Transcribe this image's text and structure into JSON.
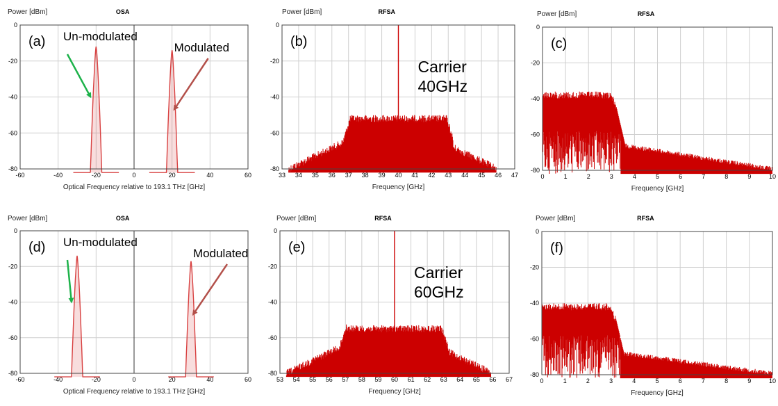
{
  "colors": {
    "trace": "#cc0000",
    "optical_trace": "#d84040",
    "grid": "#cfcfcf",
    "arrow_green": "#1db24a",
    "arrow_red": "#b3504a"
  },
  "chart_data": [
    {
      "id": "a",
      "type": "area",
      "title": "OSA",
      "label": "(a)",
      "ylabel": "Power [dBm]",
      "xlabel": "Optical Frequency relative to 193.1 THz [GHz]",
      "xlim": [
        -60,
        60
      ],
      "ylim": [
        -80,
        0
      ],
      "xticks": [
        -60,
        -40,
        -20,
        0,
        20,
        40,
        60
      ],
      "yticks": [
        0,
        -20,
        -40,
        -60,
        -80
      ],
      "center_line": 0,
      "series": [
        {
          "name": "Un-modulated",
          "center": -20,
          "peak": -12
        },
        {
          "name": "Modulated",
          "center": 20,
          "peak": -14
        }
      ],
      "annotations": [
        {
          "text": "Un-modulated",
          "arrow": "green"
        },
        {
          "text": "Modulated",
          "arrow": "red"
        }
      ]
    },
    {
      "id": "b",
      "type": "area",
      "title": "RFSA",
      "label": "(b)",
      "ylabel": "Power [dBm]",
      "xlabel": "Frequency [GHz]",
      "xlim": [
        33,
        47
      ],
      "ylim": [
        -80,
        0
      ],
      "xticks": [
        33,
        34,
        35,
        36,
        37,
        38,
        39,
        40,
        41,
        42,
        43,
        44,
        45,
        46,
        47
      ],
      "yticks": [
        0,
        -20,
        -40,
        -60,
        -80
      ],
      "carrier": 40,
      "carrier_text": [
        "Carrier",
        "40GHz"
      ],
      "band": [
        37,
        43
      ],
      "plateau_db": -50
    },
    {
      "id": "c",
      "type": "area",
      "title": "RFSA",
      "label": "(c)",
      "ylabel": "Power [dBm]",
      "xlabel": "Frequency [GHz]",
      "xlim": [
        0,
        10
      ],
      "ylim": [
        -80,
        0
      ],
      "xticks": [
        0,
        1,
        2,
        3,
        4,
        5,
        6,
        7,
        8,
        9,
        10
      ],
      "yticks": [
        0,
        -20,
        -40,
        -60,
        -80
      ],
      "plateau_db": -36,
      "edge": 3.2,
      "tail_start": -65,
      "tail_end": -78
    },
    {
      "id": "d",
      "type": "area",
      "title": "OSA",
      "label": "(d)",
      "ylabel": "Power [dBm]",
      "xlabel": "Optical Frequency relative to 193.1 THz [GHz]",
      "xlim": [
        -60,
        60
      ],
      "ylim": [
        -80,
        0
      ],
      "xticks": [
        -60,
        -40,
        -20,
        0,
        20,
        40,
        60
      ],
      "yticks": [
        0,
        -20,
        -40,
        -60,
        -80
      ],
      "center_line": 0,
      "series": [
        {
          "name": "Un-modulated",
          "center": -30,
          "peak": -14
        },
        {
          "name": "Modulated",
          "center": 30,
          "peak": -17
        }
      ],
      "annotations": [
        {
          "text": "Un-modulated",
          "arrow": "green"
        },
        {
          "text": "Modulated",
          "arrow": "red"
        }
      ]
    },
    {
      "id": "e",
      "type": "area",
      "title": "RFSA",
      "label": "(e)",
      "ylabel": "Power [dBm]",
      "xlabel": "Frequency [GHz]",
      "xlim": [
        53,
        67
      ],
      "ylim": [
        -80,
        0
      ],
      "xticks": [
        53,
        54,
        55,
        56,
        57,
        58,
        59,
        60,
        61,
        62,
        63,
        64,
        65,
        66,
        67
      ],
      "yticks": [
        0,
        -20,
        -40,
        -60,
        -80
      ],
      "carrier": 60,
      "carrier_text": [
        "Carrier",
        "60GHz"
      ],
      "band": [
        57,
        63
      ],
      "plateau_db": -53
    },
    {
      "id": "f",
      "type": "area",
      "title": "RFSA",
      "label": "(f)",
      "ylabel": "Power [dBm]",
      "xlabel": "Frequency [GHz]",
      "xlim": [
        0,
        10
      ],
      "ylim": [
        -80,
        0
      ],
      "xticks": [
        0,
        1,
        2,
        3,
        4,
        5,
        6,
        7,
        8,
        9,
        10
      ],
      "yticks": [
        0,
        -20,
        -40,
        -60,
        -80
      ],
      "plateau_db": -40,
      "edge": 3.2,
      "tail_start": -67,
      "tail_end": -78
    }
  ]
}
